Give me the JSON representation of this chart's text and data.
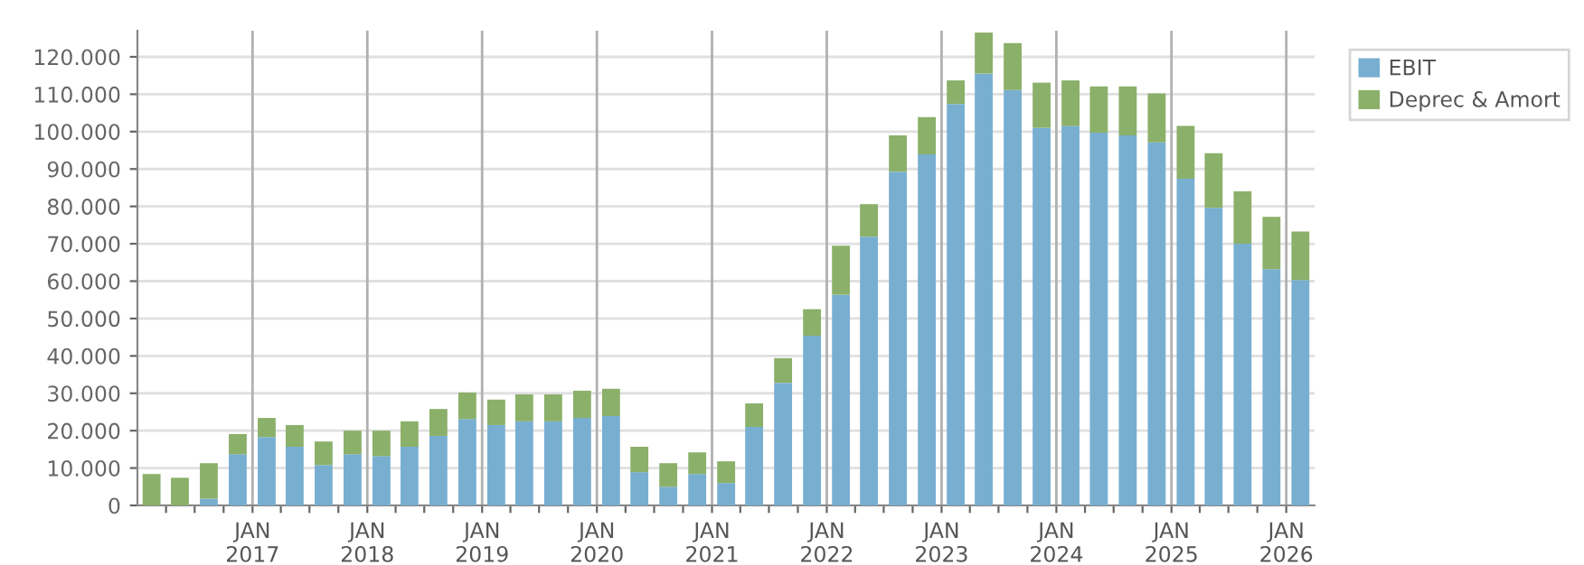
{
  "chart_data": {
    "type": "bar",
    "stacked": true,
    "x": [
      "2016-02-15",
      "2016-05-15",
      "2016-08-15",
      "2016-11-15",
      "2017-02-15",
      "2017-05-15",
      "2017-08-15",
      "2017-11-15",
      "2018-02-15",
      "2018-05-15",
      "2018-08-15",
      "2018-11-15",
      "2019-02-15",
      "2019-05-15",
      "2019-08-15",
      "2019-11-15",
      "2020-02-15",
      "2020-05-15",
      "2020-08-15",
      "2020-11-15",
      "2021-02-15",
      "2021-05-15",
      "2021-08-15",
      "2021-11-15",
      "2022-02-15",
      "2022-05-15",
      "2022-08-15",
      "2022-11-15",
      "2023-02-15",
      "2023-05-15",
      "2023-08-15",
      "2023-11-15",
      "2024-02-15",
      "2024-05-15",
      "2024-08-15",
      "2024-11-15",
      "2025-02-15",
      "2025-05-15",
      "2025-08-15",
      "2025-11-15",
      "2026-02-15"
    ],
    "series": [
      {
        "name": "EBIT",
        "color": "#78afd1",
        "values": [
          0,
          0,
          1800,
          13700,
          18300,
          15700,
          10800,
          13700,
          13200,
          15700,
          18600,
          23100,
          21500,
          22500,
          22500,
          23400,
          23900,
          8900,
          5000,
          8400,
          6000,
          21000,
          32800,
          45400,
          56400,
          71900,
          89300,
          93900,
          107400,
          115500,
          111100,
          101000,
          101500,
          99700,
          99000,
          97100,
          87400,
          79600,
          70000,
          63200,
          60300
        ]
      },
      {
        "name": "Deprec & Amort",
        "color": "#8bb06a",
        "values": [
          8400,
          7400,
          9500,
          5400,
          5100,
          5800,
          6300,
          6300,
          6800,
          6800,
          7200,
          7100,
          6800,
          7200,
          7200,
          7300,
          7300,
          6800,
          6300,
          5800,
          5800,
          6300,
          6600,
          7100,
          13100,
          8700,
          9700,
          10000,
          6300,
          11000,
          12600,
          12100,
          12200,
          12400,
          13100,
          13100,
          14100,
          14600,
          14000,
          14000,
          13000
        ]
      }
    ],
    "xlim": [
      "2016-01-01",
      "2026-04-01"
    ],
    "xticks": [
      {
        "value": "2016-04-01",
        "label": null
      },
      {
        "value": "2016-07-01",
        "label": null
      },
      {
        "value": "2016-10-01",
        "label": null
      },
      {
        "value": "2017-01-01",
        "label": "JAN\n2017"
      },
      {
        "value": "2017-04-01",
        "label": null
      },
      {
        "value": "2017-07-01",
        "label": null
      },
      {
        "value": "2017-10-01",
        "label": null
      },
      {
        "value": "2018-01-01",
        "label": "JAN\n2018"
      },
      {
        "value": "2018-04-01",
        "label": null
      },
      {
        "value": "2018-07-01",
        "label": null
      },
      {
        "value": "2018-10-01",
        "label": null
      },
      {
        "value": "2019-01-01",
        "label": "JAN\n2019"
      },
      {
        "value": "2019-04-01",
        "label": null
      },
      {
        "value": "2019-07-01",
        "label": null
      },
      {
        "value": "2019-10-01",
        "label": null
      },
      {
        "value": "2020-01-01",
        "label": "JAN\n2020"
      },
      {
        "value": "2020-04-01",
        "label": null
      },
      {
        "value": "2020-07-01",
        "label": null
      },
      {
        "value": "2020-10-01",
        "label": null
      },
      {
        "value": "2021-01-01",
        "label": "JAN\n2021"
      },
      {
        "value": "2021-04-01",
        "label": null
      },
      {
        "value": "2021-07-01",
        "label": null
      },
      {
        "value": "2021-10-01",
        "label": null
      },
      {
        "value": "2022-01-01",
        "label": "JAN\n2022"
      },
      {
        "value": "2022-04-01",
        "label": null
      },
      {
        "value": "2022-07-01",
        "label": null
      },
      {
        "value": "2022-10-01",
        "label": null
      },
      {
        "value": "2023-01-01",
        "label": "JAN\n2023"
      },
      {
        "value": "2023-04-01",
        "label": null
      },
      {
        "value": "2023-07-01",
        "label": null
      },
      {
        "value": "2023-10-01",
        "label": null
      },
      {
        "value": "2024-01-01",
        "label": "JAN\n2024"
      },
      {
        "value": "2024-04-01",
        "label": null
      },
      {
        "value": "2024-07-01",
        "label": null
      },
      {
        "value": "2024-10-01",
        "label": null
      },
      {
        "value": "2025-01-01",
        "label": "JAN\n2025"
      },
      {
        "value": "2025-04-01",
        "label": null
      },
      {
        "value": "2025-07-01",
        "label": null
      },
      {
        "value": "2025-10-01",
        "label": null
      },
      {
        "value": "2026-01-01",
        "label": "JAN\n2026"
      }
    ],
    "ylim": [
      0,
      127000
    ],
    "yticks": [
      0,
      {
        "value": 10000,
        "label": "10.000"
      },
      {
        "value": 20000,
        "label": "20.000"
      },
      {
        "value": 30000,
        "label": "30.000"
      },
      {
        "value": 40000,
        "label": "40.000"
      },
      {
        "value": 50000,
        "label": "50.000"
      },
      {
        "value": 60000,
        "label": "60.000"
      },
      {
        "value": 70000,
        "label": "70.000"
      },
      {
        "value": 80000,
        "label": "80.000"
      },
      {
        "value": 90000,
        "label": "90.000"
      },
      {
        "value": 100000,
        "label": "100.000"
      },
      {
        "value": 110000,
        "label": "110.000"
      },
      {
        "value": 120000,
        "label": "120.000"
      }
    ],
    "grid": true,
    "legend": "top right"
  }
}
